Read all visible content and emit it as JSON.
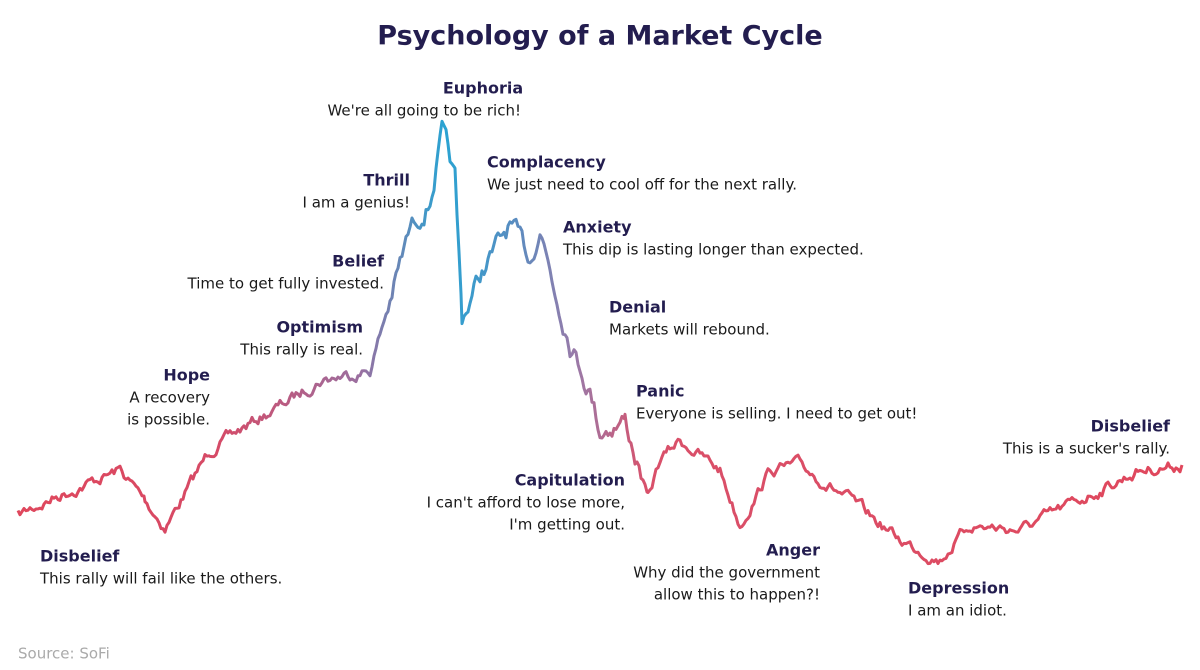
{
  "title": "Psychology of a Market Cycle",
  "stages": [
    {
      "name": "Disbelief",
      "caption": [
        "This rally will fail like the others."
      ]
    },
    {
      "name": "Hope",
      "caption": [
        "A recovery",
        "is possible."
      ]
    },
    {
      "name": "Optimism",
      "caption": [
        "This rally is real."
      ]
    },
    {
      "name": "Belief",
      "caption": [
        "Time to get fully invested."
      ]
    },
    {
      "name": "Thrill",
      "caption": [
        "I am a genius!"
      ]
    },
    {
      "name": "Euphoria",
      "caption": [
        "We're all going to be rich!"
      ]
    },
    {
      "name": "Complacency",
      "caption": [
        "We just need to cool off for the next rally."
      ]
    },
    {
      "name": "Anxiety",
      "caption": [
        "This dip is lasting longer than expected."
      ]
    },
    {
      "name": "Denial",
      "caption": [
        "Markets will rebound."
      ]
    },
    {
      "name": "Panic",
      "caption": [
        "Everyone is selling. I need to get out!"
      ]
    },
    {
      "name": "Capitulation",
      "caption": [
        "I can't afford to lose more,",
        "I'm getting out."
      ]
    },
    {
      "name": "Anger",
      "caption": [
        "Why did the government",
        "allow this to happen?!"
      ]
    },
    {
      "name": "Depression",
      "caption": [
        "I am an idiot."
      ]
    },
    {
      "name": "Disbelief",
      "caption": [
        "This is a sucker's rally."
      ]
    }
  ],
  "source": "Source: SoFi"
}
